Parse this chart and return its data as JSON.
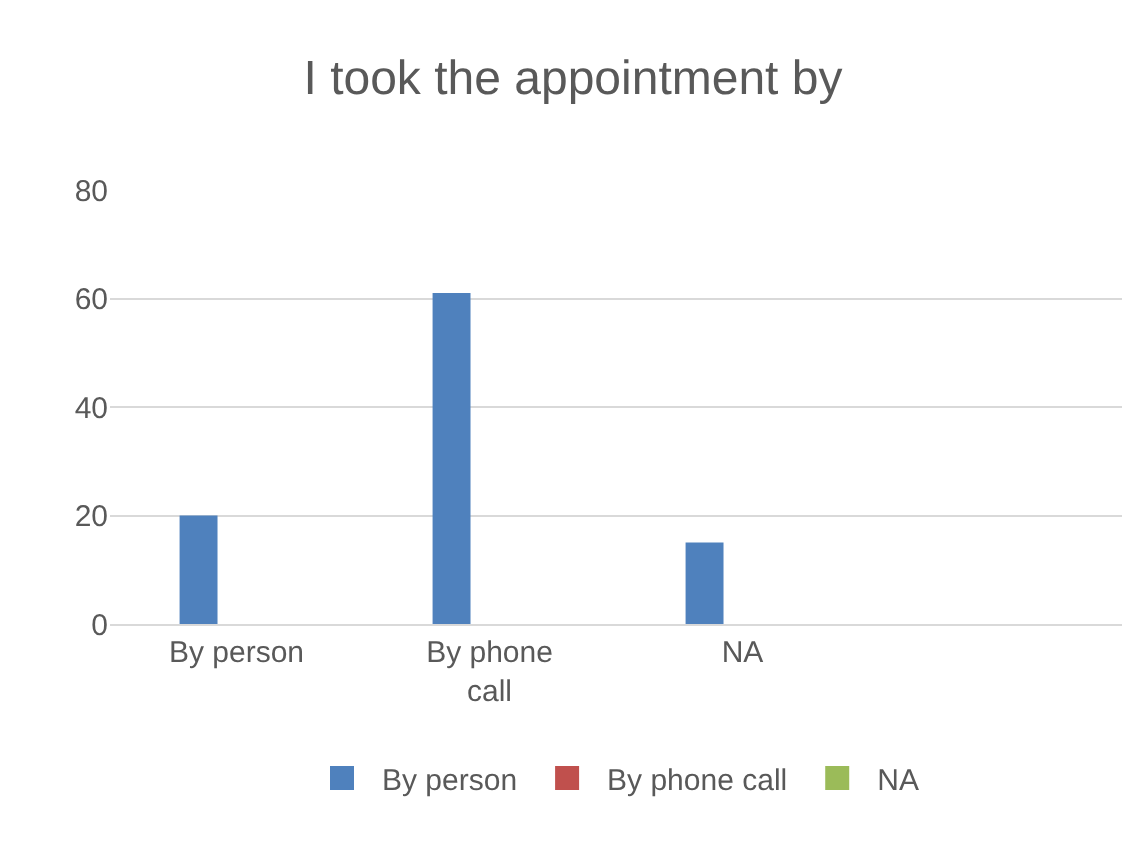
{
  "chart_data": {
    "type": "bar",
    "title": "I took the appointment by",
    "categories": [
      "By person",
      "By phone call",
      "NA",
      null
    ],
    "series": [
      {
        "name": "By person",
        "color": "#4f81bd",
        "values": [
          20,
          61,
          15,
          null
        ]
      },
      {
        "name": "By phone call",
        "color": "#c0504d",
        "values": [
          null,
          null,
          null,
          null
        ]
      },
      {
        "name": "NA",
        "color": "#9bbb59",
        "values": [
          null,
          null,
          null,
          null
        ]
      }
    ],
    "ylim": [
      0,
      80
    ],
    "yticks": [
      0,
      20,
      40,
      60,
      80
    ],
    "grid": "y",
    "legend": "bottom"
  }
}
